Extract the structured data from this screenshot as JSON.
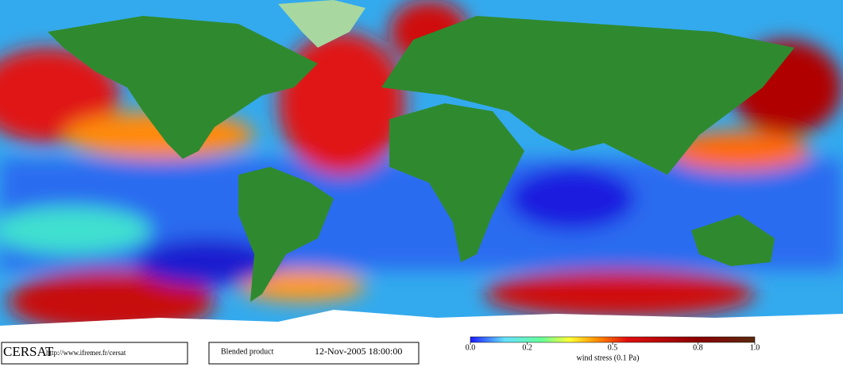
{
  "logo": "CERSAT",
  "url": "http://www.ifremer.fr/cersat",
  "product": "Blended product",
  "date": "12-Nov-2005 18:00:00",
  "colorbar": {
    "label": "wind stress (0.1 Pa)",
    "lim": [
      0,
      1
    ],
    "ticks": [
      {
        "value": 0,
        "label": "0.0"
      },
      {
        "value": 0.2,
        "label": "0.2"
      },
      {
        "value": 0.5,
        "label": "0.5"
      },
      {
        "value": 0.8,
        "label": "0.8"
      },
      {
        "value": 1,
        "label": "1.0"
      }
    ]
  }
}
